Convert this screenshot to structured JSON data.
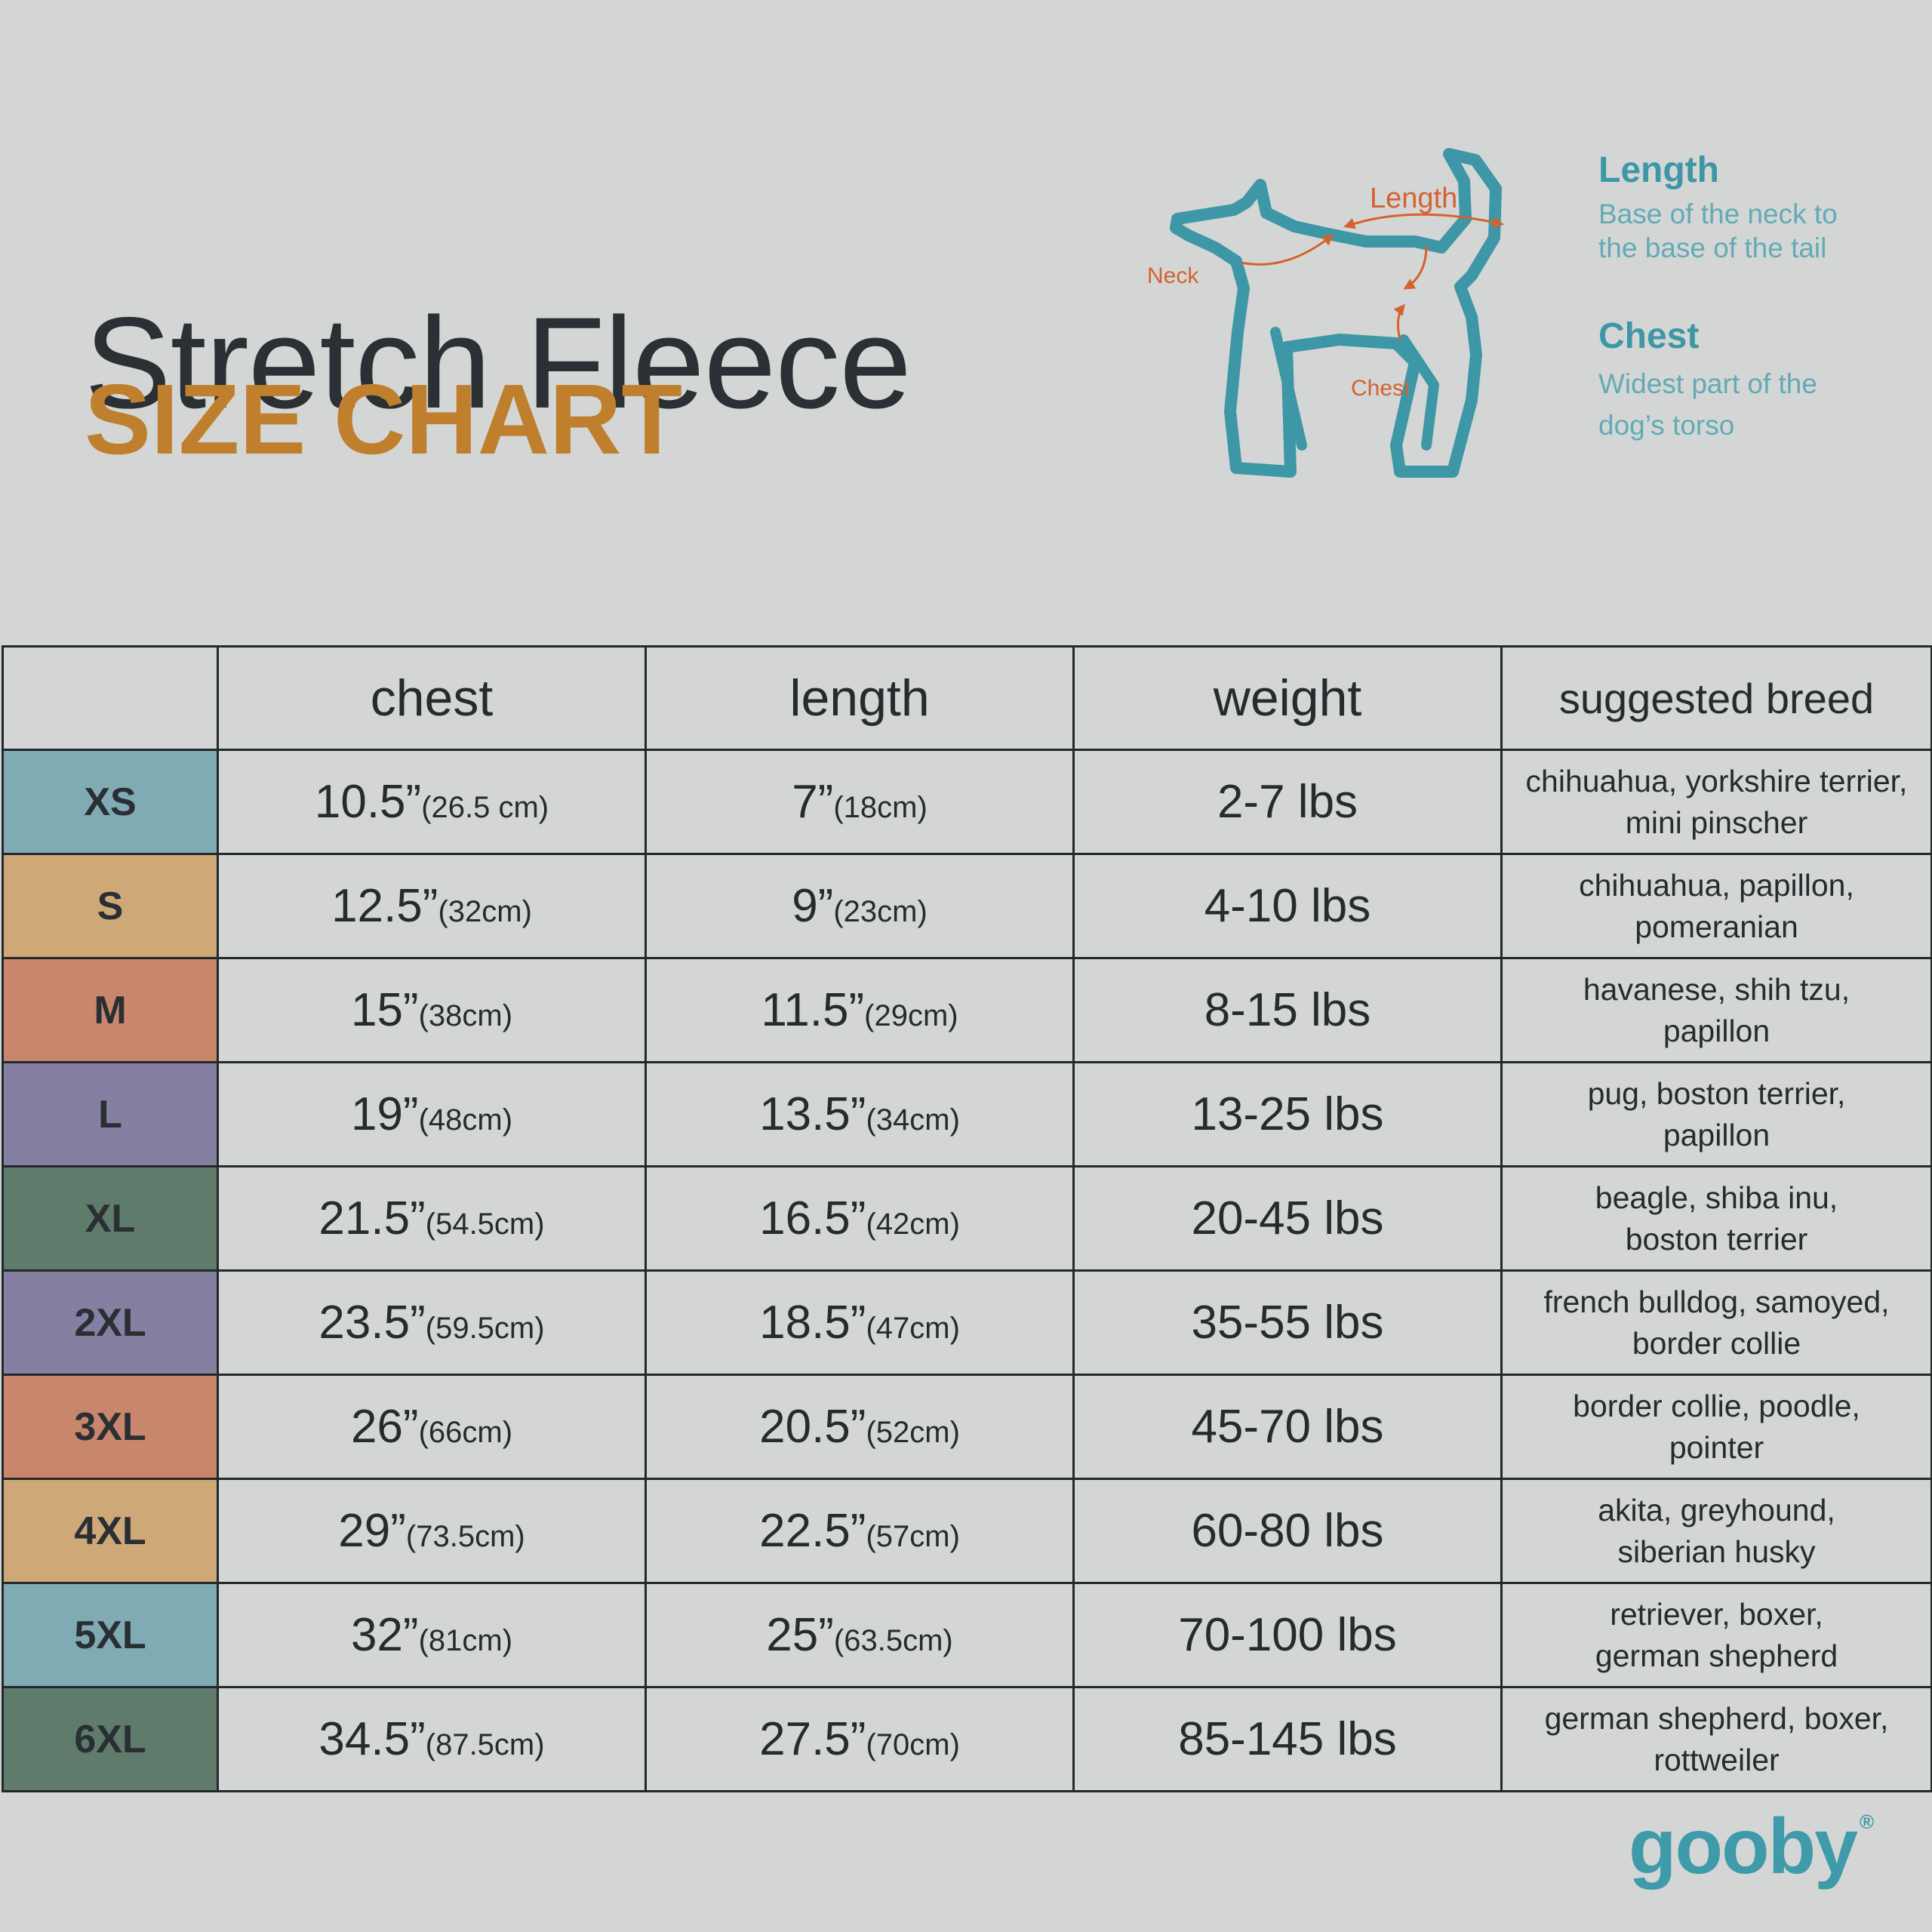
{
  "header": {
    "title": "Stretch Fleece",
    "subtitle": "SIZE CHART"
  },
  "diagram": {
    "labels": {
      "neck": "Neck",
      "length": "Length",
      "chest": "Chest"
    },
    "line_color": "#3e97a6",
    "arrow_color": "#d4622f"
  },
  "measurements": [
    {
      "title": "Length",
      "lines": [
        "Base of the neck to",
        "the base of the tail"
      ]
    },
    {
      "title": "Chest",
      "lines": [
        "Widest part of the",
        "dog’s torso"
      ]
    }
  ],
  "table": {
    "headers": [
      "",
      "chest",
      "length",
      "weight",
      "suggested breed"
    ],
    "rows": [
      {
        "size": "XS",
        "color": "#80abb5",
        "chest_in": "10.5”",
        "chest_cm": "(26.5 cm)",
        "length_in": "7”",
        "length_cm": "(18cm)",
        "weight": "2-7 lbs",
        "breed": [
          "chihuahua, yorkshire terrier,",
          "mini pinscher"
        ]
      },
      {
        "size": "S",
        "color": "#cfa878",
        "chest_in": "12.5”",
        "chest_cm": "(32cm)",
        "length_in": "9”",
        "length_cm": "(23cm)",
        "weight": "4-10 lbs",
        "breed": [
          "chihuahua, papillon,",
          "pomeranian"
        ]
      },
      {
        "size": "M",
        "color": "#c8866c",
        "chest_in": "15”",
        "chest_cm": "(38cm)",
        "length_in": "11.5”",
        "length_cm": "(29cm)",
        "weight": "8-15 lbs",
        "breed": [
          "havanese, shih tzu,",
          "papillon"
        ]
      },
      {
        "size": "L",
        "color": "#8580a2",
        "chest_in": "19”",
        "chest_cm": "(48cm)",
        "length_in": "13.5”",
        "length_cm": "(34cm)",
        "weight": "13-25 lbs",
        "breed": [
          "pug, boston terrier,",
          "papillon"
        ]
      },
      {
        "size": "XL",
        "color": "#5f7b6c",
        "chest_in": "21.5”",
        "chest_cm": "(54.5cm)",
        "length_in": "16.5”",
        "length_cm": "(42cm)",
        "weight": "20-45 lbs",
        "breed": [
          "beagle, shiba inu,",
          "boston terrier"
        ]
      },
      {
        "size": "2XL",
        "color": "#8580a2",
        "chest_in": "23.5”",
        "chest_cm": "(59.5cm)",
        "length_in": "18.5”",
        "length_cm": "(47cm)",
        "weight": "35-55 lbs",
        "breed": [
          "french bulldog, samoyed,",
          "border collie"
        ]
      },
      {
        "size": "3XL",
        "color": "#c8866c",
        "chest_in": "26”",
        "chest_cm": "(66cm)",
        "length_in": "20.5”",
        "length_cm": "(52cm)",
        "weight": "45-70 lbs",
        "breed": [
          "border collie, poodle,",
          "pointer"
        ]
      },
      {
        "size": "4XL",
        "color": "#cfa878",
        "chest_in": "29”",
        "chest_cm": "(73.5cm)",
        "length_in": "22.5”",
        "length_cm": "(57cm)",
        "weight": "60-80 lbs",
        "breed": [
          "akita, greyhound,",
          "siberian husky"
        ]
      },
      {
        "size": "5XL",
        "color": "#80abb5",
        "chest_in": "32”",
        "chest_cm": "(81cm)",
        "length_in": "25”",
        "length_cm": "(63.5cm)",
        "weight": "70-100 lbs",
        "breed": [
          "retriever, boxer,",
          "german shepherd"
        ]
      },
      {
        "size": "6XL",
        "color": "#5f7b6c",
        "chest_in": "34.5”",
        "chest_cm": "(87.5cm)",
        "length_in": "27.5”",
        "length_cm": "(70cm)",
        "weight": "85-145 lbs",
        "breed": [
          "german shepherd, boxer,",
          "rottweiler"
        ]
      }
    ]
  },
  "brand": {
    "logo_text": "gooby",
    "registered": "®",
    "color": "#3f9aaa"
  }
}
